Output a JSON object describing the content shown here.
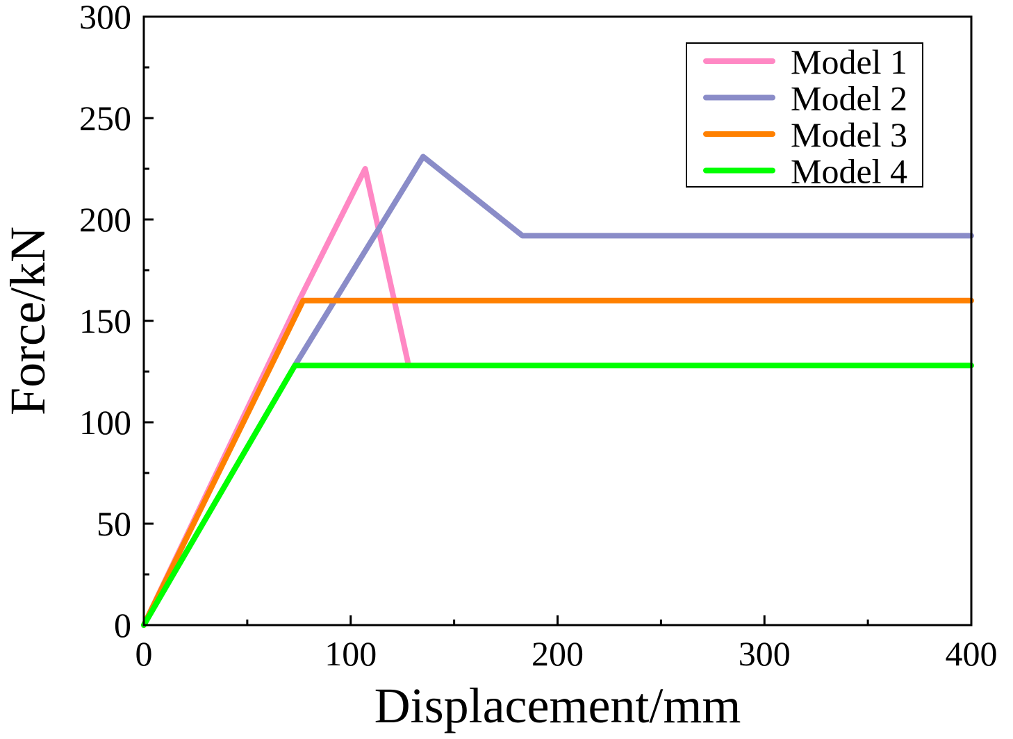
{
  "chart_data": {
    "type": "line",
    "title": "",
    "xlabel": "Displacement/mm",
    "ylabel": "Force/kN",
    "xlim": [
      0,
      400
    ],
    "ylim": [
      0,
      300
    ],
    "xticks": [
      0,
      100,
      200,
      300,
      400
    ],
    "yticks": [
      0,
      50,
      100,
      150,
      200,
      250,
      300
    ],
    "xtick_labels": [
      "0",
      "100",
      "200",
      "300",
      "400"
    ],
    "ytick_labels": [
      "0",
      "50",
      "100",
      "150",
      "200",
      "250",
      "300"
    ],
    "grid": false,
    "legend_position": "top-right",
    "series": [
      {
        "name": "Model 1",
        "color": "#ff88c4",
        "x": [
          0,
          75,
          107,
          128
        ],
        "y": [
          0,
          160,
          225,
          128
        ]
      },
      {
        "name": "Model 2",
        "color": "#8a8cc8",
        "x": [
          0,
          73,
          135,
          183,
          400
        ],
        "y": [
          0,
          128,
          231,
          192,
          192
        ]
      },
      {
        "name": "Model 3",
        "color": "#ff8000",
        "x": [
          0,
          77,
          400
        ],
        "y": [
          0,
          160,
          160
        ]
      },
      {
        "name": "Model 4",
        "color": "#00ff00",
        "x": [
          0,
          73,
          400
        ],
        "y": [
          0,
          128,
          128
        ]
      }
    ]
  }
}
